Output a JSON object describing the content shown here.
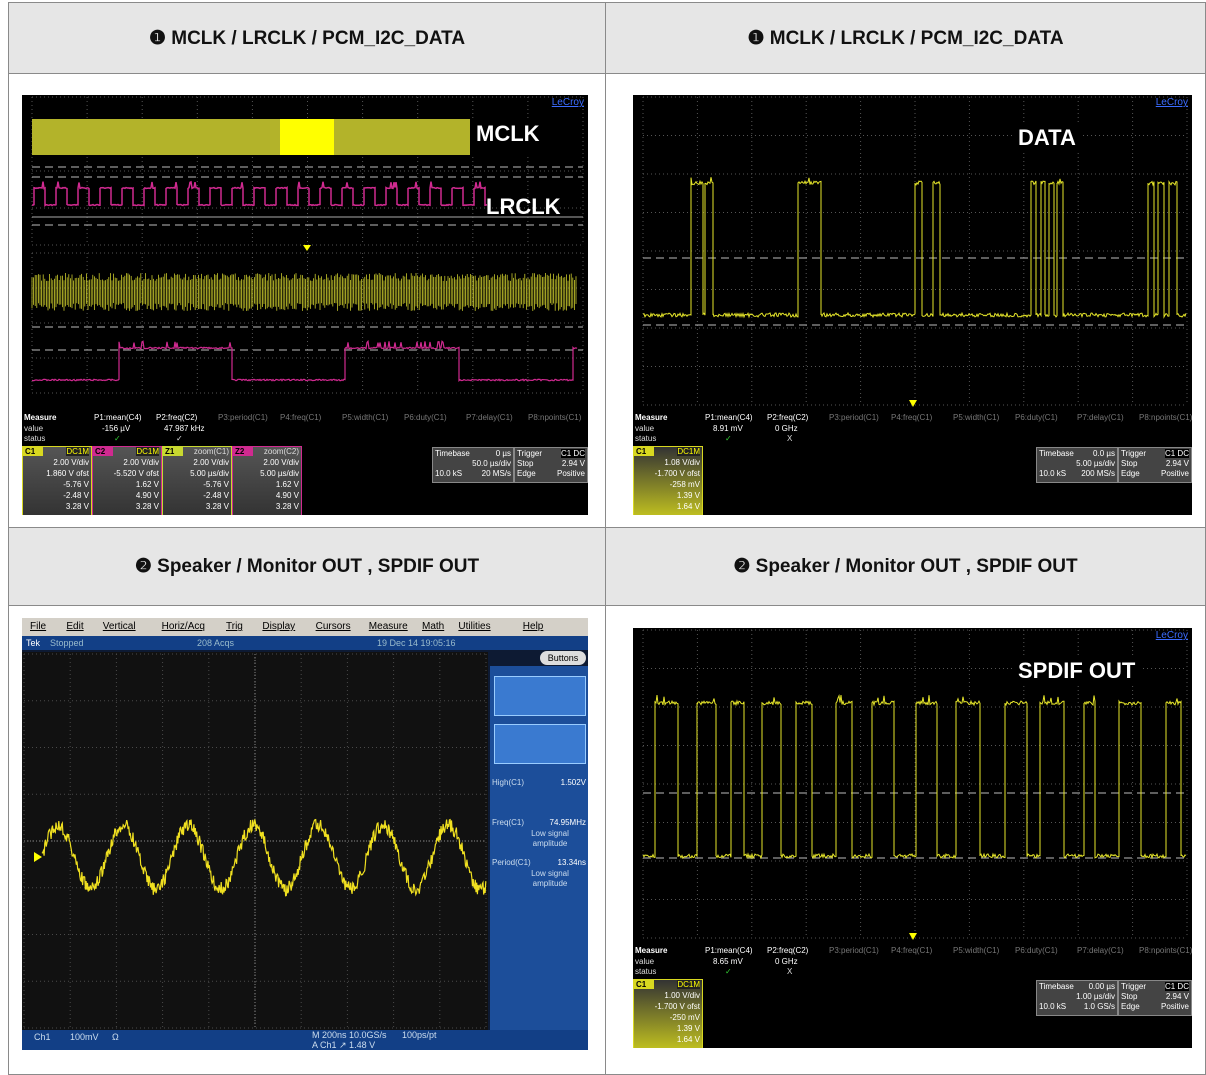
{
  "cells": [
    {
      "header": "❶ MCLK / LRCLK / PCM_I2C_DATA",
      "scope": {
        "brand": "LeCroy",
        "labels": [
          "MCLK",
          "LRCLK"
        ],
        "measure": {
          "title": "Measure",
          "rows": [
            "value",
            "status"
          ],
          "params": [
            "P1:mean(C4)",
            "P2:freq(C2)",
            "P3:period(C1)",
            "P4:freq(C1)",
            "P5:width(C1)",
            "P6:duty(C1)",
            "P7:delay(C1)",
            "P8:npoints(C1)"
          ],
          "values": [
            "-156 µV",
            "47.987 kHz"
          ],
          "status": [
            "✓",
            "✓"
          ]
        },
        "channels": [
          {
            "name": "C1",
            "tag": "DC1M",
            "lines": [
              "2.00 V/div",
              "1.860 V ofst",
              "-5.76 V",
              "-2.48 V",
              "3.28 V"
            ]
          },
          {
            "name": "C2",
            "tag": "DC1M",
            "lines": [
              "2.00 V/div",
              "-5.520 V ofst",
              "1.62 V",
              "4.90 V",
              "3.28 V"
            ]
          },
          {
            "name": "Z1",
            "tag": "zoom(C1)",
            "lines": [
              "2.00 V/div",
              "5.00 µs/div",
              "-5.76 V",
              "-2.48 V",
              "3.28 V"
            ]
          },
          {
            "name": "Z2",
            "tag": "zoom(C2)",
            "lines": [
              "2.00 V/div",
              "5.00 µs/div",
              "1.62 V",
              "4.90 V",
              "3.28 V"
            ]
          }
        ],
        "timebase": [
          "Timebase",
          "0 µs",
          "50.0 µs/div",
          "10.0 kS",
          "20 MS/s"
        ],
        "trigger": [
          "Trigger",
          "C1 DC",
          "Stop",
          "2.94 V",
          "Edge",
          "Positive"
        ]
      }
    },
    {
      "header": "❶ MCLK / LRCLK / PCM_I2C_DATA",
      "scope": {
        "brand": "LeCroy",
        "labels": [
          "DATA"
        ],
        "measure": {
          "title": "Measure",
          "rows": [
            "value",
            "status"
          ],
          "params": [
            "P1:mean(C4)",
            "P2:freq(C2)",
            "P3:period(C1)",
            "P4:freq(C1)",
            "P5:width(C1)",
            "P6:duty(C1)",
            "P7:delay(C1)",
            "P8:npoints(C1)"
          ],
          "values": [
            "8.91 mV",
            "0 GHz"
          ],
          "status": [
            "✓",
            "X"
          ]
        },
        "channels": [
          {
            "name": "C1",
            "tag": "DC1M",
            "lines": [
              "1.08 V/div",
              "-1.700 V ofst",
              "-258 mV",
              "1.39 V",
              "1.64 V"
            ]
          }
        ],
        "timebase": [
          "Timebase",
          "0.0 µs",
          "5.00 µs/div",
          "10.0 kS",
          "200 MS/s"
        ],
        "trigger": [
          "Trigger",
          "C1 DC",
          "Stop",
          "2.94 V",
          "Edge",
          "Positive"
        ]
      }
    },
    {
      "header": "❷ Speaker / Monitor OUT , SPDIF OUT",
      "tek": {
        "menu": [
          "File",
          "Edit",
          "Vertical",
          "Horiz/Acq",
          "Trig",
          "Display",
          "Cursors",
          "Measure",
          "Math",
          "Utilities",
          "Help"
        ],
        "status": [
          "Tek",
          "Stopped",
          "208 Acqs",
          "19 Dec 14 19:05:16"
        ],
        "button": "Buttons",
        "readouts": [
          {
            "label": "High(C1)",
            "value": "1.502V"
          },
          {
            "label": "Freq(C1)",
            "value": "74.95MHz",
            "note": "Low signal amplitude"
          },
          {
            "label": "Period(C1)",
            "value": "13.34ns",
            "note": "Low signal amplitude"
          }
        ],
        "bottom": [
          "Ch1",
          "100mV",
          "Ω",
          "M 200ns 10.0GS/s",
          "100ps/pt",
          "A Ch1 ↗ 1.48 V"
        ]
      }
    },
    {
      "header": "❷ Speaker / Monitor OUT , SPDIF OUT",
      "scope": {
        "brand": "LeCroy",
        "labels": [
          "SPDIF OUT"
        ],
        "measure": {
          "title": "Measure",
          "rows": [
            "value",
            "status"
          ],
          "params": [
            "P1:mean(C4)",
            "P2:freq(C2)",
            "P3:period(C1)",
            "P4:freq(C1)",
            "P5:width(C1)",
            "P6:duty(C1)",
            "P7:delay(C1)",
            "P8:npoints(C1)"
          ],
          "values": [
            "8.65 mV",
            "0 GHz"
          ],
          "status": [
            "✓",
            "X"
          ]
        },
        "channels": [
          {
            "name": "C1",
            "tag": "DC1M",
            "lines": [
              "1.00 V/div",
              "-1.700 V ofst",
              "-250 mV",
              "1.39 V",
              "1.64 V"
            ]
          }
        ],
        "timebase": [
          "Timebase",
          "0.00 µs",
          "1.00 µs/div",
          "10.0 kS",
          "1.0 GS/s"
        ],
        "trigger": [
          "Trigger",
          "C1 DC",
          "Stop",
          "2.94 V",
          "Edge",
          "Positive"
        ]
      }
    }
  ]
}
